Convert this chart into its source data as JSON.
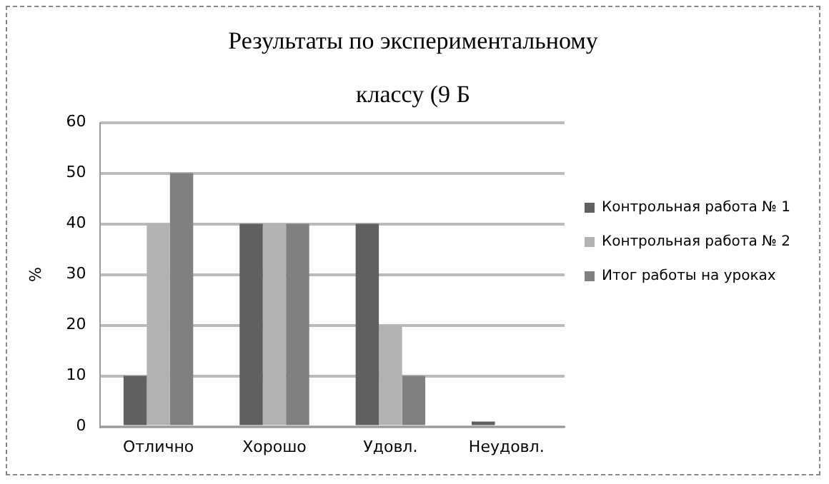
{
  "chart_data": {
    "type": "bar",
    "title": [
      "Результаты по экспериментальному",
      "классу (9 Б"
    ],
    "ylabel": "%",
    "categories": [
      "Отлично",
      "Хорошо",
      "Удовл.",
      "Неудовл."
    ],
    "series": [
      {
        "name": "Контрольная работа № 1",
        "color": "#606060",
        "values": [
          10,
          40,
          40,
          1
        ]
      },
      {
        "name": "Контрольная работа № 2",
        "color": "#b2b2b2",
        "values": [
          40,
          40,
          20,
          0
        ]
      },
      {
        "name": "Итог работы на уроках",
        "color": "#808080",
        "values": [
          50,
          40,
          10,
          0
        ]
      }
    ],
    "ylim": [
      0,
      60
    ],
    "yticks": [
      0,
      10,
      20,
      30,
      40,
      50,
      60
    ],
    "grid": "y",
    "legend": "right"
  }
}
